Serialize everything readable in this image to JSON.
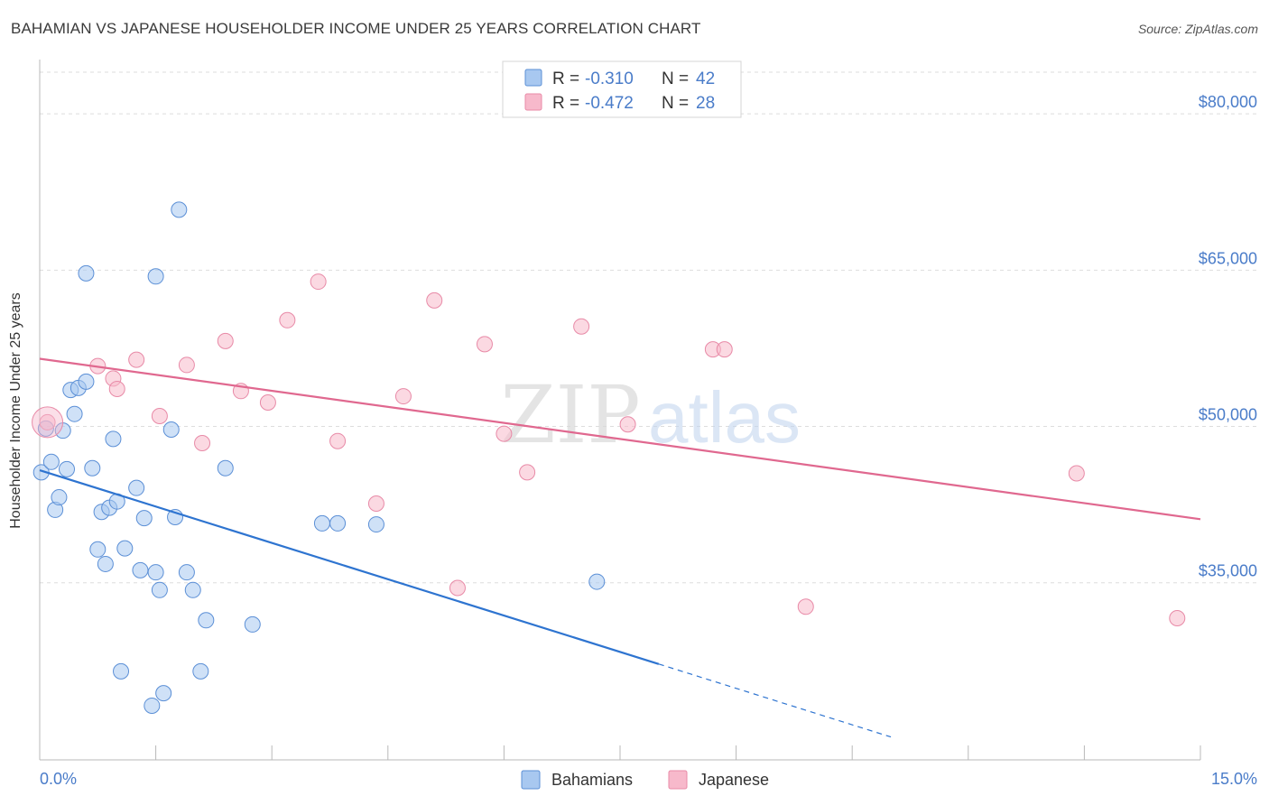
{
  "header": {
    "title": "BAHAMIAN VS JAPANESE HOUSEHOLDER INCOME UNDER 25 YEARS CORRELATION CHART",
    "source": "Source: ZipAtlas.com"
  },
  "colors": {
    "bahamians_fill": "#a8c8f0",
    "bahamians_stroke": "#5b8fd6",
    "bahamians_line": "#2e74d0",
    "japanese_fill": "#f7b9cb",
    "japanese_stroke": "#e88aa7",
    "japanese_line": "#e0688f",
    "tick_label": "#4a7cc9",
    "grid": "#dddddd"
  },
  "chart_data": {
    "type": "scatter",
    "title": "BAHAMIAN VS JAPANESE HOUSEHOLDER INCOME UNDER 25 YEARS CORRELATION CHART",
    "xlabel": "",
    "ylabel": "Householder Income Under 25 years",
    "xlim": [
      0,
      15
    ],
    "ylim": [
      18000,
      84000
    ],
    "x_tick_labels": [
      "0.0%",
      "15.0%"
    ],
    "y_ticks": [
      35000,
      50000,
      65000,
      80000
    ],
    "y_tick_labels": [
      "$35,000",
      "$50,000",
      "$65,000",
      "$80,000"
    ],
    "grid": true,
    "legend_position": "top-center",
    "stats": [
      {
        "series": "Bahamians",
        "r_label": "R =",
        "r": "-0.310",
        "n_label": "N =",
        "n": "42"
      },
      {
        "series": "Japanese",
        "r_label": "R =",
        "r": "-0.472",
        "n_label": "N =",
        "n": "28"
      }
    ],
    "series": [
      {
        "name": "Bahamians",
        "points": [
          [
            0.02,
            45600
          ],
          [
            0.08,
            49800
          ],
          [
            0.15,
            46600
          ],
          [
            0.2,
            42000
          ],
          [
            0.25,
            43200
          ],
          [
            0.3,
            49600
          ],
          [
            0.35,
            45900
          ],
          [
            0.4,
            53500
          ],
          [
            0.45,
            51200
          ],
          [
            0.5,
            53700
          ],
          [
            0.6,
            64700
          ],
          [
            0.6,
            54300
          ],
          [
            0.68,
            46000
          ],
          [
            0.75,
            38200
          ],
          [
            0.8,
            41800
          ],
          [
            0.85,
            36800
          ],
          [
            0.9,
            42200
          ],
          [
            0.95,
            48800
          ],
          [
            1.0,
            42800
          ],
          [
            1.05,
            26500
          ],
          [
            1.1,
            38300
          ],
          [
            1.25,
            44100
          ],
          [
            1.3,
            36200
          ],
          [
            1.35,
            41200
          ],
          [
            1.45,
            23200
          ],
          [
            1.5,
            64400
          ],
          [
            1.5,
            36000
          ],
          [
            1.55,
            34300
          ],
          [
            1.6,
            24400
          ],
          [
            1.7,
            49700
          ],
          [
            1.75,
            41300
          ],
          [
            1.8,
            70800
          ],
          [
            1.9,
            36000
          ],
          [
            1.98,
            34300
          ],
          [
            2.08,
            26500
          ],
          [
            2.15,
            31400
          ],
          [
            2.4,
            46000
          ],
          [
            2.75,
            31000
          ],
          [
            3.65,
            40700
          ],
          [
            3.85,
            40700
          ],
          [
            4.35,
            40600
          ],
          [
            7.2,
            35100
          ]
        ]
      },
      {
        "name": "Japanese",
        "points": [
          [
            0.1,
            50400
          ],
          [
            0.75,
            55800
          ],
          [
            0.95,
            54600
          ],
          [
            1.0,
            53600
          ],
          [
            1.25,
            56400
          ],
          [
            1.55,
            51000
          ],
          [
            1.9,
            55900
          ],
          [
            2.1,
            48400
          ],
          [
            2.4,
            58200
          ],
          [
            2.6,
            53400
          ],
          [
            2.95,
            52300
          ],
          [
            3.2,
            60200
          ],
          [
            3.6,
            63900
          ],
          [
            3.85,
            48600
          ],
          [
            4.35,
            42600
          ],
          [
            4.7,
            52900
          ],
          [
            5.1,
            62100
          ],
          [
            5.4,
            34500
          ],
          [
            5.75,
            57900
          ],
          [
            6.0,
            49300
          ],
          [
            6.3,
            45600
          ],
          [
            7.0,
            59600
          ],
          [
            7.6,
            50200
          ],
          [
            8.7,
            57400
          ],
          [
            8.85,
            57400
          ],
          [
            9.9,
            32700
          ],
          [
            13.4,
            45500
          ],
          [
            14.7,
            31600
          ]
        ]
      }
    ],
    "trend_lines": [
      {
        "series": "Bahamians",
        "solid": [
          [
            0,
            45800
          ],
          [
            8.0,
            27200
          ]
        ],
        "dashed": [
          [
            8.0,
            27200
          ],
          [
            11.0,
            20200
          ]
        ]
      },
      {
        "series": "Japanese",
        "solid": [
          [
            0,
            56500
          ],
          [
            15.0,
            41100
          ]
        ]
      }
    ],
    "legend": [
      "Bahamians",
      "Japanese"
    ],
    "watermark": "ZIPatlas"
  }
}
